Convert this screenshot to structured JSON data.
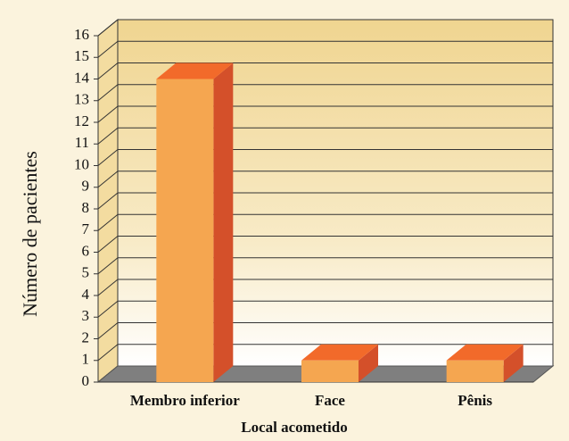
{
  "chart_data": {
    "type": "bar3d",
    "xlabel": "Local acometido",
    "ylabel": "Número de pacientes",
    "categories": [
      "Membro inferior",
      "Face",
      "Pênis"
    ],
    "values": [
      14,
      1,
      1
    ],
    "colors": {
      "front": "#f5a650",
      "side": "#d4502a",
      "top": "#f26a2a",
      "floor": "#7f7f7f"
    },
    "ylim": [
      0,
      16
    ],
    "yticks": [
      0,
      1,
      2,
      3,
      4,
      5,
      6,
      7,
      8,
      9,
      10,
      11,
      12,
      13,
      14,
      15,
      16
    ],
    "grid": true
  }
}
